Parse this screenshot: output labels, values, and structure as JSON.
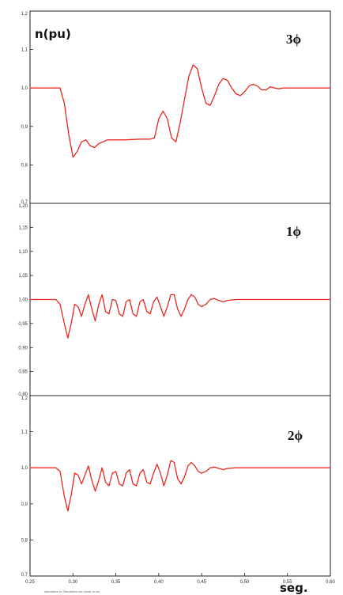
{
  "figure": {
    "ylabel": "n(pu)",
    "xlabel": "seg.",
    "footnote": "simulation in Simulation cut mode in cut",
    "colors": {
      "trace": "#e8281e",
      "axis": "#222222",
      "background": "#ffffff"
    }
  },
  "chart_data": [
    {
      "type": "line",
      "title": "3ϕ",
      "xlim": [
        0.25,
        0.6
      ],
      "ylim": [
        0.7,
        1.2
      ],
      "yticks": [
        "1,2",
        "1,1",
        "1,0",
        "0,9",
        "0,8",
        "0,7"
      ],
      "series": [
        {
          "values": [
            [
              0.25,
              1.0
            ],
            [
              0.27,
              1.0
            ],
            [
              0.28,
              1.0
            ],
            [
              0.285,
              1.0
            ],
            [
              0.29,
              0.96
            ],
            [
              0.295,
              0.88
            ],
            [
              0.3,
              0.82
            ],
            [
              0.305,
              0.835
            ],
            [
              0.31,
              0.86
            ],
            [
              0.315,
              0.865
            ],
            [
              0.32,
              0.85
            ],
            [
              0.325,
              0.845
            ],
            [
              0.33,
              0.855
            ],
            [
              0.34,
              0.865
            ],
            [
              0.36,
              0.865
            ],
            [
              0.38,
              0.867
            ],
            [
              0.39,
              0.867
            ],
            [
              0.395,
              0.87
            ],
            [
              0.4,
              0.92
            ],
            [
              0.405,
              0.94
            ],
            [
              0.41,
              0.92
            ],
            [
              0.415,
              0.87
            ],
            [
              0.42,
              0.86
            ],
            [
              0.425,
              0.91
            ],
            [
              0.43,
              0.97
            ],
            [
              0.435,
              1.03
            ],
            [
              0.44,
              1.06
            ],
            [
              0.445,
              1.05
            ],
            [
              0.45,
              1.0
            ],
            [
              0.455,
              0.96
            ],
            [
              0.46,
              0.955
            ],
            [
              0.465,
              0.98
            ],
            [
              0.47,
              1.01
            ],
            [
              0.475,
              1.025
            ],
            [
              0.48,
              1.02
            ],
            [
              0.485,
              1.0
            ],
            [
              0.49,
              0.985
            ],
            [
              0.495,
              0.98
            ],
            [
              0.5,
              0.99
            ],
            [
              0.505,
              1.005
            ],
            [
              0.51,
              1.01
            ],
            [
              0.515,
              1.005
            ],
            [
              0.52,
              0.995
            ],
            [
              0.525,
              0.995
            ],
            [
              0.53,
              1.003
            ],
            [
              0.535,
              1.0
            ],
            [
              0.54,
              0.998
            ],
            [
              0.545,
              1.0
            ],
            [
              0.55,
              1.0
            ],
            [
              0.6,
              1.0
            ]
          ]
        }
      ]
    },
    {
      "type": "line",
      "title": "1ϕ",
      "xlim": [
        0.25,
        0.6
      ],
      "ylim": [
        0.8,
        1.2
      ],
      "yticks": [
        "1,20",
        "1,15",
        "1,10",
        "1,05",
        "1,00",
        "0,95",
        "0,90",
        "0,85",
        "0,80"
      ],
      "series": [
        {
          "values": [
            [
              0.25,
              1.0
            ],
            [
              0.28,
              1.0
            ],
            [
              0.285,
              0.99
            ],
            [
              0.29,
              0.95
            ],
            [
              0.294,
              0.92
            ],
            [
              0.298,
              0.95
            ],
            [
              0.302,
              0.99
            ],
            [
              0.306,
              0.985
            ],
            [
              0.31,
              0.965
            ],
            [
              0.314,
              0.99
            ],
            [
              0.318,
              1.01
            ],
            [
              0.322,
              0.98
            ],
            [
              0.326,
              0.955
            ],
            [
              0.33,
              0.99
            ],
            [
              0.334,
              1.01
            ],
            [
              0.338,
              0.975
            ],
            [
              0.342,
              0.97
            ],
            [
              0.346,
              1.0
            ],
            [
              0.35,
              0.998
            ],
            [
              0.354,
              0.97
            ],
            [
              0.358,
              0.965
            ],
            [
              0.362,
              0.995
            ],
            [
              0.366,
              1.0
            ],
            [
              0.37,
              0.97
            ],
            [
              0.374,
              0.965
            ],
            [
              0.378,
              0.995
            ],
            [
              0.382,
              1.0
            ],
            [
              0.386,
              0.975
            ],
            [
              0.39,
              0.97
            ],
            [
              0.394,
              0.995
            ],
            [
              0.398,
              1.005
            ],
            [
              0.402,
              0.985
            ],
            [
              0.406,
              0.965
            ],
            [
              0.41,
              0.985
            ],
            [
              0.414,
              1.01
            ],
            [
              0.418,
              1.01
            ],
            [
              0.422,
              0.98
            ],
            [
              0.426,
              0.965
            ],
            [
              0.43,
              0.98
            ],
            [
              0.434,
              1.0
            ],
            [
              0.438,
              1.01
            ],
            [
              0.442,
              1.005
            ],
            [
              0.446,
              0.99
            ],
            [
              0.45,
              0.985
            ],
            [
              0.455,
              0.99
            ],
            [
              0.46,
              1.0
            ],
            [
              0.465,
              1.002
            ],
            [
              0.47,
              0.998
            ],
            [
              0.475,
              0.995
            ],
            [
              0.48,
              0.998
            ],
            [
              0.49,
              1.0
            ],
            [
              0.5,
              1.0
            ],
            [
              0.6,
              1.0
            ]
          ]
        }
      ]
    },
    {
      "type": "line",
      "title": "2ϕ",
      "xlim": [
        0.25,
        0.6
      ],
      "ylim": [
        0.7,
        1.2
      ],
      "yticks": [
        "1,2",
        "1,1",
        "1,0",
        "0,9",
        "0,8",
        "0,7"
      ],
      "xticks": [
        "0,25",
        "0,30",
        "0,35",
        "0,40",
        "0,45",
        "0,50",
        "0,55",
        "0,60"
      ],
      "series": [
        {
          "values": [
            [
              0.25,
              1.0
            ],
            [
              0.28,
              1.0
            ],
            [
              0.285,
              0.99
            ],
            [
              0.29,
              0.92
            ],
            [
              0.294,
              0.88
            ],
            [
              0.298,
              0.925
            ],
            [
              0.302,
              0.985
            ],
            [
              0.306,
              0.98
            ],
            [
              0.31,
              0.955
            ],
            [
              0.314,
              0.98
            ],
            [
              0.318,
              1.005
            ],
            [
              0.322,
              0.965
            ],
            [
              0.326,
              0.935
            ],
            [
              0.33,
              0.965
            ],
            [
              0.334,
              1.0
            ],
            [
              0.338,
              0.96
            ],
            [
              0.342,
              0.95
            ],
            [
              0.346,
              0.985
            ],
            [
              0.35,
              0.99
            ],
            [
              0.354,
              0.955
            ],
            [
              0.358,
              0.95
            ],
            [
              0.362,
              0.985
            ],
            [
              0.366,
              0.995
            ],
            [
              0.37,
              0.955
            ],
            [
              0.374,
              0.95
            ],
            [
              0.378,
              0.985
            ],
            [
              0.382,
              0.995
            ],
            [
              0.386,
              0.96
            ],
            [
              0.39,
              0.955
            ],
            [
              0.394,
              0.985
            ],
            [
              0.398,
              1.01
            ],
            [
              0.402,
              0.985
            ],
            [
              0.406,
              0.95
            ],
            [
              0.41,
              0.98
            ],
            [
              0.414,
              1.02
            ],
            [
              0.418,
              1.015
            ],
            [
              0.422,
              0.97
            ],
            [
              0.426,
              0.955
            ],
            [
              0.43,
              0.975
            ],
            [
              0.434,
              1.005
            ],
            [
              0.438,
              1.015
            ],
            [
              0.442,
              1.005
            ],
            [
              0.446,
              0.99
            ],
            [
              0.45,
              0.985
            ],
            [
              0.455,
              0.99
            ],
            [
              0.46,
              1.0
            ],
            [
              0.465,
              1.002
            ],
            [
              0.47,
              0.998
            ],
            [
              0.475,
              0.995
            ],
            [
              0.48,
              0.998
            ],
            [
              0.49,
              1.0
            ],
            [
              0.5,
              1.0
            ],
            [
              0.6,
              1.0
            ]
          ]
        }
      ]
    }
  ]
}
